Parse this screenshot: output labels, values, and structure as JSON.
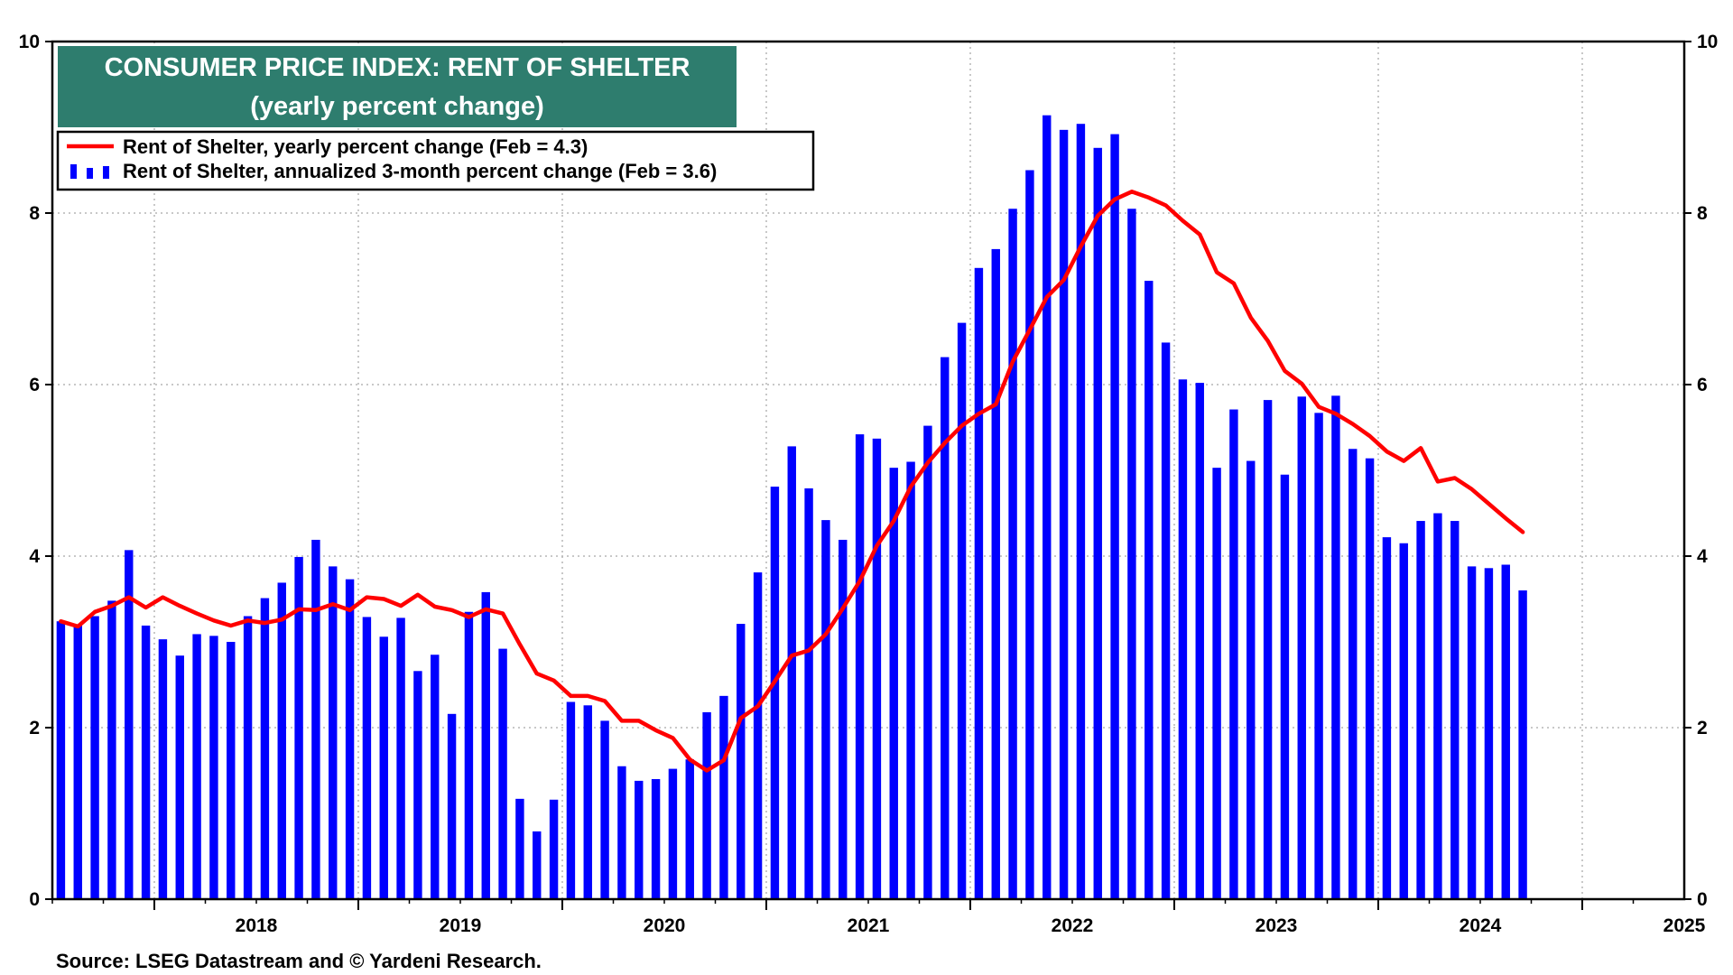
{
  "chart_data": {
    "type": "bar",
    "title": "CONSUMER PRICE INDEX: RENT OF SHELTER",
    "subtitle": "(yearly percent change)",
    "ylim": [
      0,
      10
    ],
    "yticks": [
      0,
      2,
      4,
      6,
      8,
      10
    ],
    "y_axes": "left-and-right",
    "x_start": "2017-07",
    "x_end": "2025-06",
    "xticks": [
      "2018",
      "2019",
      "2020",
      "2021",
      "2022",
      "2023",
      "2024",
      "2025"
    ],
    "grid": "dotted",
    "legend_position": "top-left",
    "source": "Source: LSEG Datastream and © Yardeni Research.",
    "colors": {
      "title_bg": "#2e7d6e",
      "line": "#ff0000",
      "bars": "#0000ff"
    },
    "series": [
      {
        "name": "Rent of Shelter, annualized 3-month percent change (Feb = 3.6)",
        "kind": "bar",
        "start": "2017-07",
        "values": [
          3.24,
          3.2,
          3.3,
          3.48,
          4.07,
          3.19,
          3.03,
          2.84,
          3.09,
          3.07,
          3.0,
          3.3,
          3.51,
          3.69,
          3.99,
          4.19,
          3.88,
          3.73,
          3.29,
          3.06,
          3.28,
          2.66,
          2.85,
          2.16,
          3.35,
          3.58,
          2.92,
          1.17,
          0.79,
          1.16,
          2.3,
          2.26,
          2.08,
          1.55,
          1.38,
          1.4,
          1.52,
          1.63,
          2.18,
          2.37,
          3.21,
          3.81,
          4.81,
          5.28,
          4.79,
          4.42,
          4.19,
          5.42,
          5.37,
          5.03,
          5.1,
          5.52,
          6.32,
          6.72,
          7.36,
          7.58,
          8.05,
          8.5,
          9.14,
          8.97,
          9.04,
          8.76,
          8.92,
          8.05,
          7.21,
          6.49,
          6.06,
          6.02,
          5.03,
          5.71,
          5.11,
          5.82,
          4.95,
          5.86,
          5.67,
          5.87,
          5.25,
          5.14,
          4.22,
          4.15,
          4.41,
          4.5,
          4.41,
          3.88,
          3.86,
          3.9,
          3.6
        ]
      },
      {
        "name": "Rent of Shelter, yearly percent change (Feb = 4.3)",
        "kind": "line",
        "start": "2017-07",
        "values": [
          3.24,
          3.18,
          3.35,
          3.42,
          3.52,
          3.4,
          3.52,
          3.42,
          3.33,
          3.25,
          3.19,
          3.25,
          3.22,
          3.26,
          3.38,
          3.37,
          3.44,
          3.37,
          3.52,
          3.5,
          3.42,
          3.55,
          3.41,
          3.37,
          3.29,
          3.38,
          3.33,
          2.97,
          2.63,
          2.55,
          2.37,
          2.37,
          2.31,
          2.08,
          2.08,
          1.97,
          1.88,
          1.63,
          1.5,
          1.62,
          2.11,
          2.25,
          2.54,
          2.84,
          2.9,
          3.09,
          3.39,
          3.71,
          4.12,
          4.41,
          4.81,
          5.09,
          5.32,
          5.52,
          5.66,
          5.77,
          6.27,
          6.64,
          7.02,
          7.22,
          7.61,
          7.97,
          8.16,
          8.25,
          8.18,
          8.09,
          7.91,
          7.75,
          7.31,
          7.18,
          6.78,
          6.51,
          6.16,
          6.01,
          5.74,
          5.66,
          5.54,
          5.4,
          5.22,
          5.11,
          5.26,
          4.87,
          4.91,
          4.78,
          4.61,
          4.44,
          4.28
        ]
      }
    ]
  }
}
